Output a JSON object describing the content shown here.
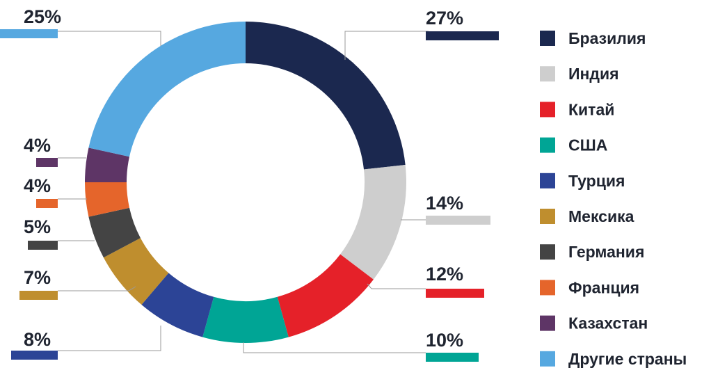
{
  "chart_data": {
    "type": "pie",
    "variant": "donut",
    "title": "",
    "legend_position": "right",
    "slices": [
      {
        "label": "Бразилия",
        "value": 27,
        "value_label": "27%",
        "color": "#1b284f"
      },
      {
        "label": "Индия",
        "value": 14,
        "value_label": "14%",
        "color": "#cecece"
      },
      {
        "label": "Китай",
        "value": 12,
        "value_label": "12%",
        "color": "#e52129"
      },
      {
        "label": "США",
        "value": 10,
        "value_label": "10%",
        "color": "#00a595"
      },
      {
        "label": "Турция",
        "value": 8,
        "value_label": "8%",
        "color": "#2c4496"
      },
      {
        "label": "Мексика",
        "value": 7,
        "value_label": "7%",
        "color": "#bf8e2e"
      },
      {
        "label": "Германия",
        "value": 5,
        "value_label": "5%",
        "color": "#444444"
      },
      {
        "label": "Франция",
        "value": 4,
        "value_label": "4%",
        "color": "#e5652b"
      },
      {
        "label": "Казахстан",
        "value": 4,
        "value_label": "4%",
        "color": "#5e3566"
      },
      {
        "label": "Другие страны",
        "value": 25,
        "value_label": "25%",
        "color": "#56a8e0"
      }
    ]
  }
}
